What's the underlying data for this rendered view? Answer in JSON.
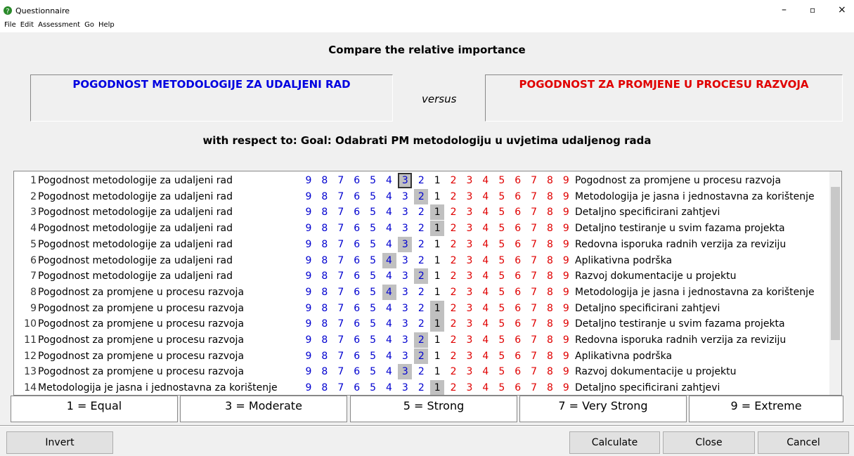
{
  "window": {
    "title": "Questionnaire"
  },
  "menu": [
    "File",
    "Edit",
    "Assessment",
    "Go",
    "Help"
  ],
  "heading": "Compare the relative importance",
  "left_item": "POGODNOST METODOLOGIJE ZA UDALJENI RAD",
  "versus": "versus",
  "right_item": "POGODNOST ZA PROMJENE U PROCESU RAZVOJA",
  "respect": "with respect to: Goal: Odabrati PM metodologiju u uvjetima udaljenog rada",
  "scale": [
    9,
    8,
    7,
    6,
    5,
    4,
    3,
    2,
    1,
    2,
    3,
    4,
    5,
    6,
    7,
    8,
    9
  ],
  "rows": [
    {
      "num": 1,
      "left": "Pogodnost metodologije za udaljeni rad",
      "right": "Pogodnost za promjene u procesu razvoja",
      "selected": 6,
      "focused": true
    },
    {
      "num": 2,
      "left": "Pogodnost metodologije za udaljeni rad",
      "right": "Metodologija je jasna i jednostavna za korištenje",
      "selected": 7
    },
    {
      "num": 3,
      "left": "Pogodnost metodologije za udaljeni rad",
      "right": "Detaljno specificirani zahtjevi",
      "selected": 8
    },
    {
      "num": 4,
      "left": "Pogodnost metodologije za udaljeni rad",
      "right": "Detaljno testiranje u svim fazama projekta",
      "selected": 8
    },
    {
      "num": 5,
      "left": "Pogodnost metodologije za udaljeni rad",
      "right": "Redovna isporuka radnih verzija za reviziju",
      "selected": 6
    },
    {
      "num": 6,
      "left": "Pogodnost metodologije za udaljeni rad",
      "right": "Aplikativna podrška",
      "selected": 5
    },
    {
      "num": 7,
      "left": "Pogodnost metodologije za udaljeni rad",
      "right": "Razvoj dokumentacije u projektu",
      "selected": 7
    },
    {
      "num": 8,
      "left": "Pogodnost za promjene u procesu razvoja",
      "right": "Metodologija je jasna i jednostavna za korištenje",
      "selected": 5
    },
    {
      "num": 9,
      "left": "Pogodnost za promjene u procesu razvoja",
      "right": "Detaljno specificirani zahtjevi",
      "selected": 8
    },
    {
      "num": 10,
      "left": "Pogodnost za promjene u procesu razvoja",
      "right": "Detaljno testiranje u svim fazama projekta",
      "selected": 8
    },
    {
      "num": 11,
      "left": "Pogodnost za promjene u procesu razvoja",
      "right": "Redovna isporuka radnih verzija za reviziju",
      "selected": 7
    },
    {
      "num": 12,
      "left": "Pogodnost za promjene u procesu razvoja",
      "right": "Aplikativna podrška",
      "selected": 7
    },
    {
      "num": 13,
      "left": "Pogodnost za promjene u procesu razvoja",
      "right": "Razvoj dokumentacije u projektu",
      "selected": 6
    },
    {
      "num": 14,
      "left": "Metodologija je jasna i jednostavna za korištenje",
      "right": "Detaljno specificirani zahtjevi",
      "selected": 8
    }
  ],
  "legend": [
    "1 = Equal",
    "3 = Moderate",
    "5 = Strong",
    "7 = Very Strong",
    "9 = Extreme"
  ],
  "buttons": {
    "invert": "Invert",
    "calculate": "Calculate",
    "close": "Close",
    "cancel": "Cancel"
  }
}
